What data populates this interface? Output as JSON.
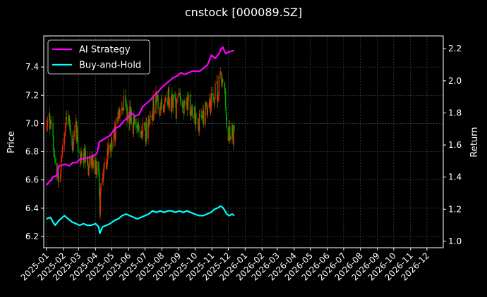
{
  "chart_data": {
    "type": "line",
    "title": "cnstock [000089.SZ]",
    "xlabel": "",
    "ylabel_left": "Price",
    "ylabel_right": "Return",
    "xlim": [
      "2024-12-27",
      "2026-12-31"
    ],
    "ylim_left": [
      6.12,
      7.62
    ],
    "ylim_right": [
      0.96,
      2.28
    ],
    "grid": true,
    "legend_position": "upper-left",
    "x_ticks": [
      "2025-01",
      "2025-02",
      "2025-03",
      "2025-04",
      "2025-05",
      "2025-06",
      "2025-07",
      "2025-08",
      "2025-09",
      "2025-10",
      "2025-11",
      "2025-12",
      "2026-01",
      "2026-02",
      "2026-03",
      "2026-04",
      "2026-05",
      "2026-06",
      "2026-07",
      "2026-08",
      "2026-09",
      "2026-10",
      "2026-11",
      "2026-12"
    ],
    "y_ticks_left": [
      "6.2",
      "6.4",
      "6.6",
      "6.8",
      "7.0",
      "7.2",
      "7.4"
    ],
    "y_ticks_right": [
      "1.0",
      "1.2",
      "1.4",
      "1.6",
      "1.8",
      "2.0",
      "2.2"
    ],
    "colors": {
      "up": "#ff2200",
      "down": "#00aa00",
      "ai": "#ff00ff",
      "bh": "#00ffff"
    },
    "price_points": [
      [
        "2025-01-02",
        6.95
      ],
      [
        "2025-01-10",
        7.05
      ],
      [
        "2025-01-17",
        6.7
      ],
      [
        "2025-01-24",
        6.6
      ],
      [
        "2025-02-03",
        6.95
      ],
      [
        "2025-02-10",
        7.0
      ],
      [
        "2025-02-17",
        6.85
      ],
      [
        "2025-02-24",
        6.95
      ],
      [
        "2025-03-03",
        6.75
      ],
      [
        "2025-03-10",
        6.8
      ],
      [
        "2025-03-17",
        6.7
      ],
      [
        "2025-03-24",
        6.7
      ],
      [
        "2025-04-01",
        6.7
      ],
      [
        "2025-04-07",
        6.7
      ],
      [
        "2025-04-09",
        6.4
      ],
      [
        "2025-04-11",
        6.62
      ],
      [
        "2025-04-18",
        6.7
      ],
      [
        "2025-04-25",
        6.8
      ],
      [
        "2025-05-06",
        6.9
      ],
      [
        "2025-05-13",
        7.05
      ],
      [
        "2025-05-20",
        7.15
      ],
      [
        "2025-05-27",
        7.1
      ],
      [
        "2025-06-03",
        7.05
      ],
      [
        "2025-06-10",
        7.0
      ],
      [
        "2025-06-17",
        7.0
      ],
      [
        "2025-06-24",
        6.95
      ],
      [
        "2025-07-01",
        6.95
      ],
      [
        "2025-07-08",
        7.0
      ],
      [
        "2025-07-15",
        7.1
      ],
      [
        "2025-07-22",
        7.2
      ],
      [
        "2025-07-29",
        7.1
      ],
      [
        "2025-08-05",
        7.15
      ],
      [
        "2025-08-12",
        7.2
      ],
      [
        "2025-08-19",
        7.15
      ],
      [
        "2025-08-26",
        7.1
      ],
      [
        "2025-09-02",
        7.15
      ],
      [
        "2025-09-09",
        7.1
      ],
      [
        "2025-09-16",
        7.15
      ],
      [
        "2025-09-23",
        7.1
      ],
      [
        "2025-09-30",
        7.05
      ],
      [
        "2025-10-09",
        7.0
      ],
      [
        "2025-10-16",
        7.05
      ],
      [
        "2025-10-23",
        7.1
      ],
      [
        "2025-10-30",
        7.15
      ],
      [
        "2025-11-06",
        7.2
      ],
      [
        "2025-11-13",
        7.25
      ],
      [
        "2025-11-17",
        7.35
      ],
      [
        "2025-11-21",
        7.3
      ],
      [
        "2025-11-25",
        7.2
      ],
      [
        "2025-11-28",
        6.95
      ],
      [
        "2025-12-03",
        6.9
      ],
      [
        "2025-12-08",
        6.95
      ],
      [
        "2025-12-12",
        6.9
      ]
    ],
    "series": [
      {
        "name": "AI Strategy",
        "color": "#ff00ff",
        "axis": "right",
        "points": [
          [
            "2025-01-01",
            1.35
          ],
          [
            "2025-01-08",
            1.38
          ],
          [
            "2025-01-10",
            1.38
          ],
          [
            "2025-01-12",
            1.4
          ],
          [
            "2025-01-20",
            1.41
          ],
          [
            "2025-01-24",
            1.47
          ],
          [
            "2025-02-05",
            1.48
          ],
          [
            "2025-02-12",
            1.47
          ],
          [
            "2025-02-18",
            1.49
          ],
          [
            "2025-02-25",
            1.49
          ],
          [
            "2025-03-03",
            1.51
          ],
          [
            "2025-03-17",
            1.52
          ],
          [
            "2025-03-28",
            1.53
          ],
          [
            "2025-04-04",
            1.55
          ],
          [
            "2025-04-08",
            1.62
          ],
          [
            "2025-04-18",
            1.64
          ],
          [
            "2025-04-28",
            1.66
          ],
          [
            "2025-05-06",
            1.7
          ],
          [
            "2025-05-16",
            1.72
          ],
          [
            "2025-05-23",
            1.75
          ],
          [
            "2025-05-30",
            1.77
          ],
          [
            "2025-06-06",
            1.8
          ],
          [
            "2025-06-13",
            1.78
          ],
          [
            "2025-06-20",
            1.79
          ],
          [
            "2025-06-27",
            1.84
          ],
          [
            "2025-07-04",
            1.86
          ],
          [
            "2025-07-11",
            1.88
          ],
          [
            "2025-07-18",
            1.91
          ],
          [
            "2025-07-25",
            1.93
          ],
          [
            "2025-08-01",
            1.96
          ],
          [
            "2025-08-08",
            1.98
          ],
          [
            "2025-08-15",
            2.0
          ],
          [
            "2025-08-22",
            2.02
          ],
          [
            "2025-08-29",
            2.03
          ],
          [
            "2025-09-05",
            2.05
          ],
          [
            "2025-09-12",
            2.04
          ],
          [
            "2025-09-19",
            2.05
          ],
          [
            "2025-09-26",
            2.06
          ],
          [
            "2025-10-10",
            2.06
          ],
          [
            "2025-10-17",
            2.08
          ],
          [
            "2025-10-24",
            2.1
          ],
          [
            "2025-10-31",
            2.16
          ],
          [
            "2025-11-07",
            2.14
          ],
          [
            "2025-11-14",
            2.17
          ],
          [
            "2025-11-18",
            2.2
          ],
          [
            "2025-11-21",
            2.21
          ],
          [
            "2025-11-26",
            2.17
          ],
          [
            "2025-12-02",
            2.18
          ],
          [
            "2025-12-12",
            2.19
          ]
        ]
      },
      {
        "name": "Buy-and-Hold",
        "color": "#00ffff",
        "axis": "right",
        "points": [
          [
            "2025-01-01",
            1.14
          ],
          [
            "2025-01-08",
            1.15
          ],
          [
            "2025-01-13",
            1.12
          ],
          [
            "2025-01-17",
            1.1
          ],
          [
            "2025-01-24",
            1.13
          ],
          [
            "2025-02-03",
            1.16
          ],
          [
            "2025-02-10",
            1.14
          ],
          [
            "2025-02-17",
            1.12
          ],
          [
            "2025-02-24",
            1.11
          ],
          [
            "2025-03-03",
            1.1
          ],
          [
            "2025-03-10",
            1.11
          ],
          [
            "2025-03-17",
            1.1
          ],
          [
            "2025-03-24",
            1.1
          ],
          [
            "2025-04-01",
            1.11
          ],
          [
            "2025-04-07",
            1.09
          ],
          [
            "2025-04-09",
            1.05
          ],
          [
            "2025-04-14",
            1.09
          ],
          [
            "2025-04-21",
            1.1
          ],
          [
            "2025-04-28",
            1.11
          ],
          [
            "2025-05-06",
            1.13
          ],
          [
            "2025-05-13",
            1.14
          ],
          [
            "2025-05-20",
            1.16
          ],
          [
            "2025-05-27",
            1.17
          ],
          [
            "2025-06-03",
            1.16
          ],
          [
            "2025-06-10",
            1.15
          ],
          [
            "2025-06-17",
            1.14
          ],
          [
            "2025-06-24",
            1.15
          ],
          [
            "2025-07-01",
            1.16
          ],
          [
            "2025-07-08",
            1.17
          ],
          [
            "2025-07-15",
            1.19
          ],
          [
            "2025-07-22",
            1.18
          ],
          [
            "2025-07-29",
            1.19
          ],
          [
            "2025-08-05",
            1.18
          ],
          [
            "2025-08-12",
            1.19
          ],
          [
            "2025-08-19",
            1.19
          ],
          [
            "2025-08-26",
            1.18
          ],
          [
            "2025-09-02",
            1.19
          ],
          [
            "2025-09-09",
            1.18
          ],
          [
            "2025-09-16",
            1.19
          ],
          [
            "2025-09-23",
            1.18
          ],
          [
            "2025-09-30",
            1.17
          ],
          [
            "2025-10-09",
            1.16
          ],
          [
            "2025-10-16",
            1.16
          ],
          [
            "2025-10-23",
            1.17
          ],
          [
            "2025-10-30",
            1.18
          ],
          [
            "2025-11-06",
            1.2
          ],
          [
            "2025-11-13",
            1.21
          ],
          [
            "2025-11-17",
            1.22
          ],
          [
            "2025-11-21",
            1.21
          ],
          [
            "2025-11-25",
            1.19
          ],
          [
            "2025-11-28",
            1.17
          ],
          [
            "2025-12-03",
            1.16
          ],
          [
            "2025-12-08",
            1.17
          ],
          [
            "2025-12-12",
            1.16
          ]
        ]
      }
    ]
  }
}
